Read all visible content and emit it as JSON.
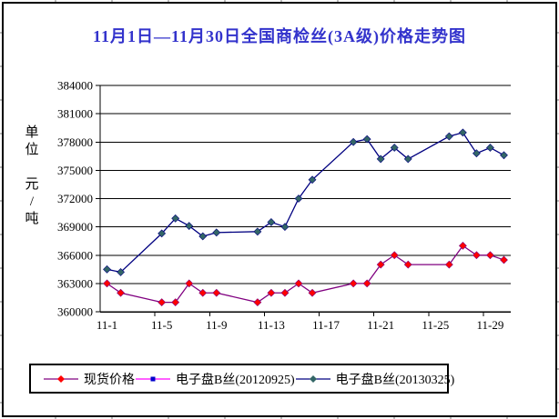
{
  "chart_data": {
    "type": "line",
    "title": "11月1日—11月30日全国商检丝(3A级)价格走势图",
    "title_color": "#3333CC",
    "y_axis": {
      "unit_label_top": "单位",
      "unit_label_bottom": "元/吨",
      "min": 360000,
      "max": 384000,
      "step": 3000,
      "tick_labels": [
        "360000",
        "363000",
        "366000",
        "369000",
        "372000",
        "375000",
        "378000",
        "381000",
        "384000"
      ]
    },
    "x_axis": {
      "total_days": 30,
      "tick_days": [
        1,
        5,
        9,
        13,
        17,
        21,
        25,
        29
      ],
      "tick_labels": [
        "11-1",
        "11-5",
        "11-9",
        "11-13",
        "11-17",
        "11-21",
        "11-25",
        "11-29"
      ]
    },
    "grid": "horizontal-on",
    "legend_position": "bottom",
    "series": [
      {
        "name": "现货价格",
        "line_color": "#800080",
        "marker": "diamond",
        "marker_color": "#FF0000",
        "days": [
          1,
          2,
          5,
          6,
          7,
          8,
          9,
          12,
          13,
          14,
          15,
          16,
          19,
          20,
          21,
          22,
          23,
          26,
          27,
          28,
          29,
          30
        ],
        "values": [
          363000,
          362000,
          361000,
          361000,
          363000,
          362000,
          362000,
          361000,
          362000,
          362000,
          363000,
          362000,
          363000,
          363000,
          365000,
          366000,
          365000,
          365000,
          367000,
          366000,
          366000,
          365500
        ]
      },
      {
        "name": "电子盘B丝(20120925)",
        "line_color": "#FF00FF",
        "marker": "square",
        "marker_color": "#0000CC",
        "days": [],
        "values": []
      },
      {
        "name": "电子盘B丝(20130325)",
        "line_color": "#000080",
        "marker": "diamond",
        "marker_color": "#336666",
        "days": [
          1,
          2,
          5,
          6,
          7,
          8,
          9,
          12,
          13,
          14,
          15,
          16,
          19,
          20,
          21,
          22,
          23,
          26,
          27,
          28,
          29,
          30
        ],
        "values": [
          364500,
          364200,
          368300,
          369900,
          369100,
          368000,
          368400,
          368500,
          369500,
          369000,
          372000,
          374000,
          378000,
          378300,
          376200,
          377400,
          376200,
          378600,
          379000,
          376800,
          377400,
          376600
        ]
      }
    ]
  }
}
